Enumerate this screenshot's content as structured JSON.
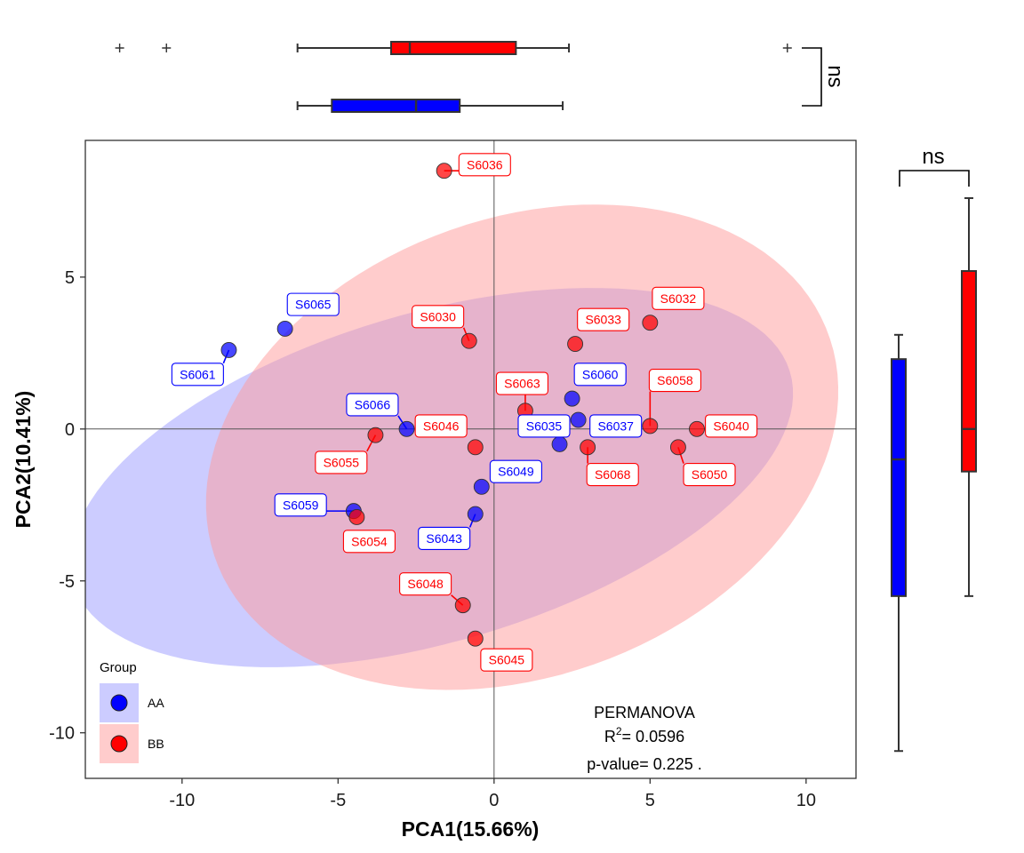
{
  "chart_data": [
    {
      "type": "scatter",
      "title": "",
      "xlabel": "PCA1(15.66%)",
      "ylabel": "PCA2(10.41%)",
      "xlim": [
        -13.1,
        11.6
      ],
      "ylim": [
        -11.5,
        9.5
      ],
      "xticks": [
        -10,
        -5,
        0,
        5,
        10
      ],
      "yticks": [
        -10,
        -5,
        0,
        5
      ],
      "xtick_labels": [
        "-10",
        "-5",
        "0",
        "5",
        "10"
      ],
      "ytick_labels": [
        "-10",
        "-5",
        "0",
        "5"
      ],
      "reference_lines": {
        "x": 0,
        "y": 0
      },
      "grid": false,
      "legend": {
        "title": "Group",
        "position": "bottom-left",
        "entries": [
          {
            "name": "AA",
            "color": "#0000ff",
            "fill": "#ccccff"
          },
          {
            "name": "BB",
            "color": "#ff0000",
            "fill": "#ffcccc"
          }
        ]
      },
      "annotation": {
        "line1": "PERMANOVA",
        "r2_prefix": "R",
        "r2_sup": "2",
        "r2_value": "= 0.0596",
        "pvalue": "p-value= 0.225 ."
      },
      "ellipses": [
        {
          "group": "AA",
          "cx": -2.0,
          "cy": -1.6,
          "rx": 12.0,
          "ry": 5.4,
          "angle_deg": 17,
          "color": "#9999ff",
          "opacity": 0.5
        },
        {
          "group": "BB",
          "cx": 0.9,
          "cy": -0.6,
          "rx": 10.5,
          "ry": 7.5,
          "angle_deg": 22,
          "color": "#ff9999",
          "opacity": 0.5
        }
      ],
      "series": [
        {
          "name": "AA",
          "color": "#0000ff",
          "points": [
            {
              "label": "S6061",
              "x": -8.5,
              "y": 2.6,
              "lx": -9.5,
              "ly": 1.8
            },
            {
              "label": "S6065",
              "x": -6.7,
              "y": 3.3,
              "lx": -5.8,
              "ly": 4.1
            },
            {
              "label": "S6066",
              "x": -2.8,
              "y": 0.0,
              "lx": -3.9,
              "ly": 0.8
            },
            {
              "label": "S6059",
              "x": -4.5,
              "y": -2.7,
              "lx": -6.2,
              "ly": -2.5
            },
            {
              "label": "S6043",
              "x": -0.6,
              "y": -2.8,
              "lx": -1.6,
              "ly": -3.6
            },
            {
              "label": "S6049",
              "x": -0.4,
              "y": -1.9,
              "lx": 0.7,
              "ly": -1.4
            },
            {
              "label": "S6035",
              "x": 2.1,
              "y": -0.5,
              "lx": 1.6,
              "ly": 0.1
            },
            {
              "label": "S6037",
              "x": 2.7,
              "y": 0.3,
              "lx": 3.9,
              "ly": 0.1
            },
            {
              "label": "S6060",
              "x": 2.5,
              "y": 1.0,
              "lx": 3.4,
              "ly": 1.8
            }
          ]
        },
        {
          "name": "BB",
          "color": "#ff0000",
          "points": [
            {
              "label": "S6036",
              "x": -1.6,
              "y": 8.5,
              "lx": -0.3,
              "ly": 8.7
            },
            {
              "label": "S6030",
              "x": -0.8,
              "y": 2.9,
              "lx": -1.8,
              "ly": 3.7
            },
            {
              "label": "S6033",
              "x": 2.6,
              "y": 2.8,
              "lx": 3.5,
              "ly": 3.6
            },
            {
              "label": "S6032",
              "x": 5.0,
              "y": 3.5,
              "lx": 5.9,
              "ly": 4.3
            },
            {
              "label": "S6063",
              "x": 1.0,
              "y": 0.6,
              "lx": 0.9,
              "ly": 1.5
            },
            {
              "label": "S6058",
              "x": 5.0,
              "y": 0.1,
              "lx": 5.8,
              "ly": 1.6
            },
            {
              "label": "S6040",
              "x": 6.5,
              "y": 0.0,
              "lx": 7.6,
              "ly": 0.1
            },
            {
              "label": "S6046",
              "x": -0.6,
              "y": -0.6,
              "lx": -1.7,
              "ly": 0.1
            },
            {
              "label": "S6055",
              "x": -3.8,
              "y": -0.2,
              "lx": -4.9,
              "ly": -1.1
            },
            {
              "label": "S6068",
              "x": 3.0,
              "y": -0.6,
              "lx": 3.8,
              "ly": -1.5
            },
            {
              "label": "S6050",
              "x": 5.9,
              "y": -0.6,
              "lx": 6.9,
              "ly": -1.5
            },
            {
              "label": "S6054",
              "x": -4.4,
              "y": -2.9,
              "lx": -4.0,
              "ly": -3.7
            },
            {
              "label": "S6048",
              "x": -1.0,
              "y": -5.8,
              "lx": -2.2,
              "ly": -5.1
            },
            {
              "label": "S6045",
              "x": -0.6,
              "y": -6.9,
              "lx": 0.4,
              "ly": -7.6
            }
          ]
        }
      ]
    },
    {
      "type": "box",
      "orientation": "horizontal",
      "axis": "x",
      "significance": "ns",
      "groups": [
        {
          "name": "BB",
          "color": "#ff0000",
          "min": -6.3,
          "q1": -3.3,
          "median": -2.7,
          "q3": 0.7,
          "max": 2.4,
          "outliers": [
            -12.0,
            -10.5,
            9.4
          ]
        },
        {
          "name": "AA",
          "color": "#0000ff",
          "min": -6.3,
          "q1": -5.2,
          "median": -2.5,
          "q3": -1.1,
          "max": 2.2,
          "outliers": []
        }
      ]
    },
    {
      "type": "box",
      "orientation": "vertical",
      "axis": "y",
      "significance": "ns",
      "groups": [
        {
          "name": "AA",
          "color": "#0000ff",
          "min": -10.6,
          "q1": -5.5,
          "median": -1.0,
          "q3": 2.3,
          "max": 3.1,
          "outliers": []
        },
        {
          "name": "BB",
          "color": "#ff0000",
          "min": -5.5,
          "q1": -1.4,
          "median": 0.0,
          "q3": 5.2,
          "max": 7.6,
          "outliers": []
        }
      ]
    }
  ]
}
